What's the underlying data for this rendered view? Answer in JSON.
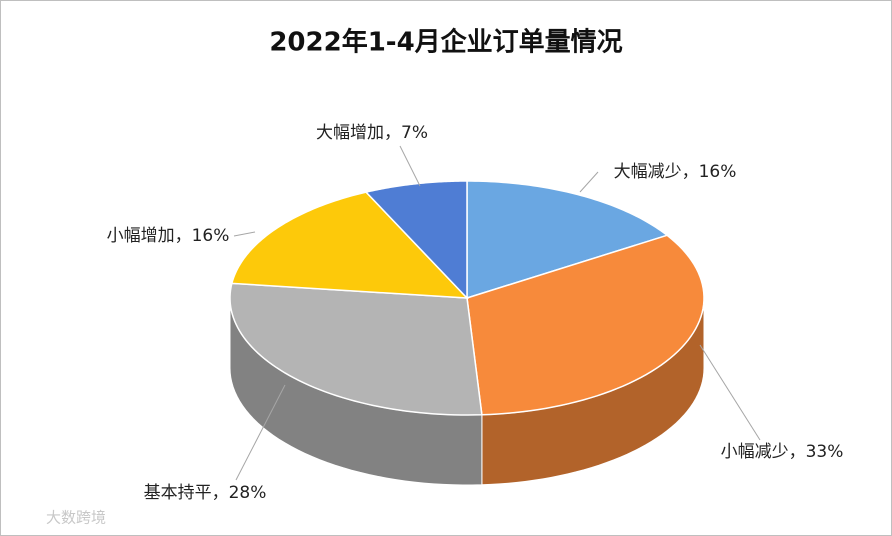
{
  "chart_data": {
    "type": "pie3d",
    "title": "2022年1-4月企业订单量情况",
    "values": [
      16,
      33,
      28,
      16,
      7
    ],
    "value_labels": [
      "大幅减少，16%",
      "小幅减少，33%",
      "基本持平，28%",
      "小幅增加，16%",
      "大幅增加，7%"
    ],
    "colors": [
      "#6aa7e2",
      "#f78a3b",
      "#b4b4b4",
      "#fdc90a",
      "#4f7dd4"
    ]
  },
  "watermark": "大数跨境"
}
